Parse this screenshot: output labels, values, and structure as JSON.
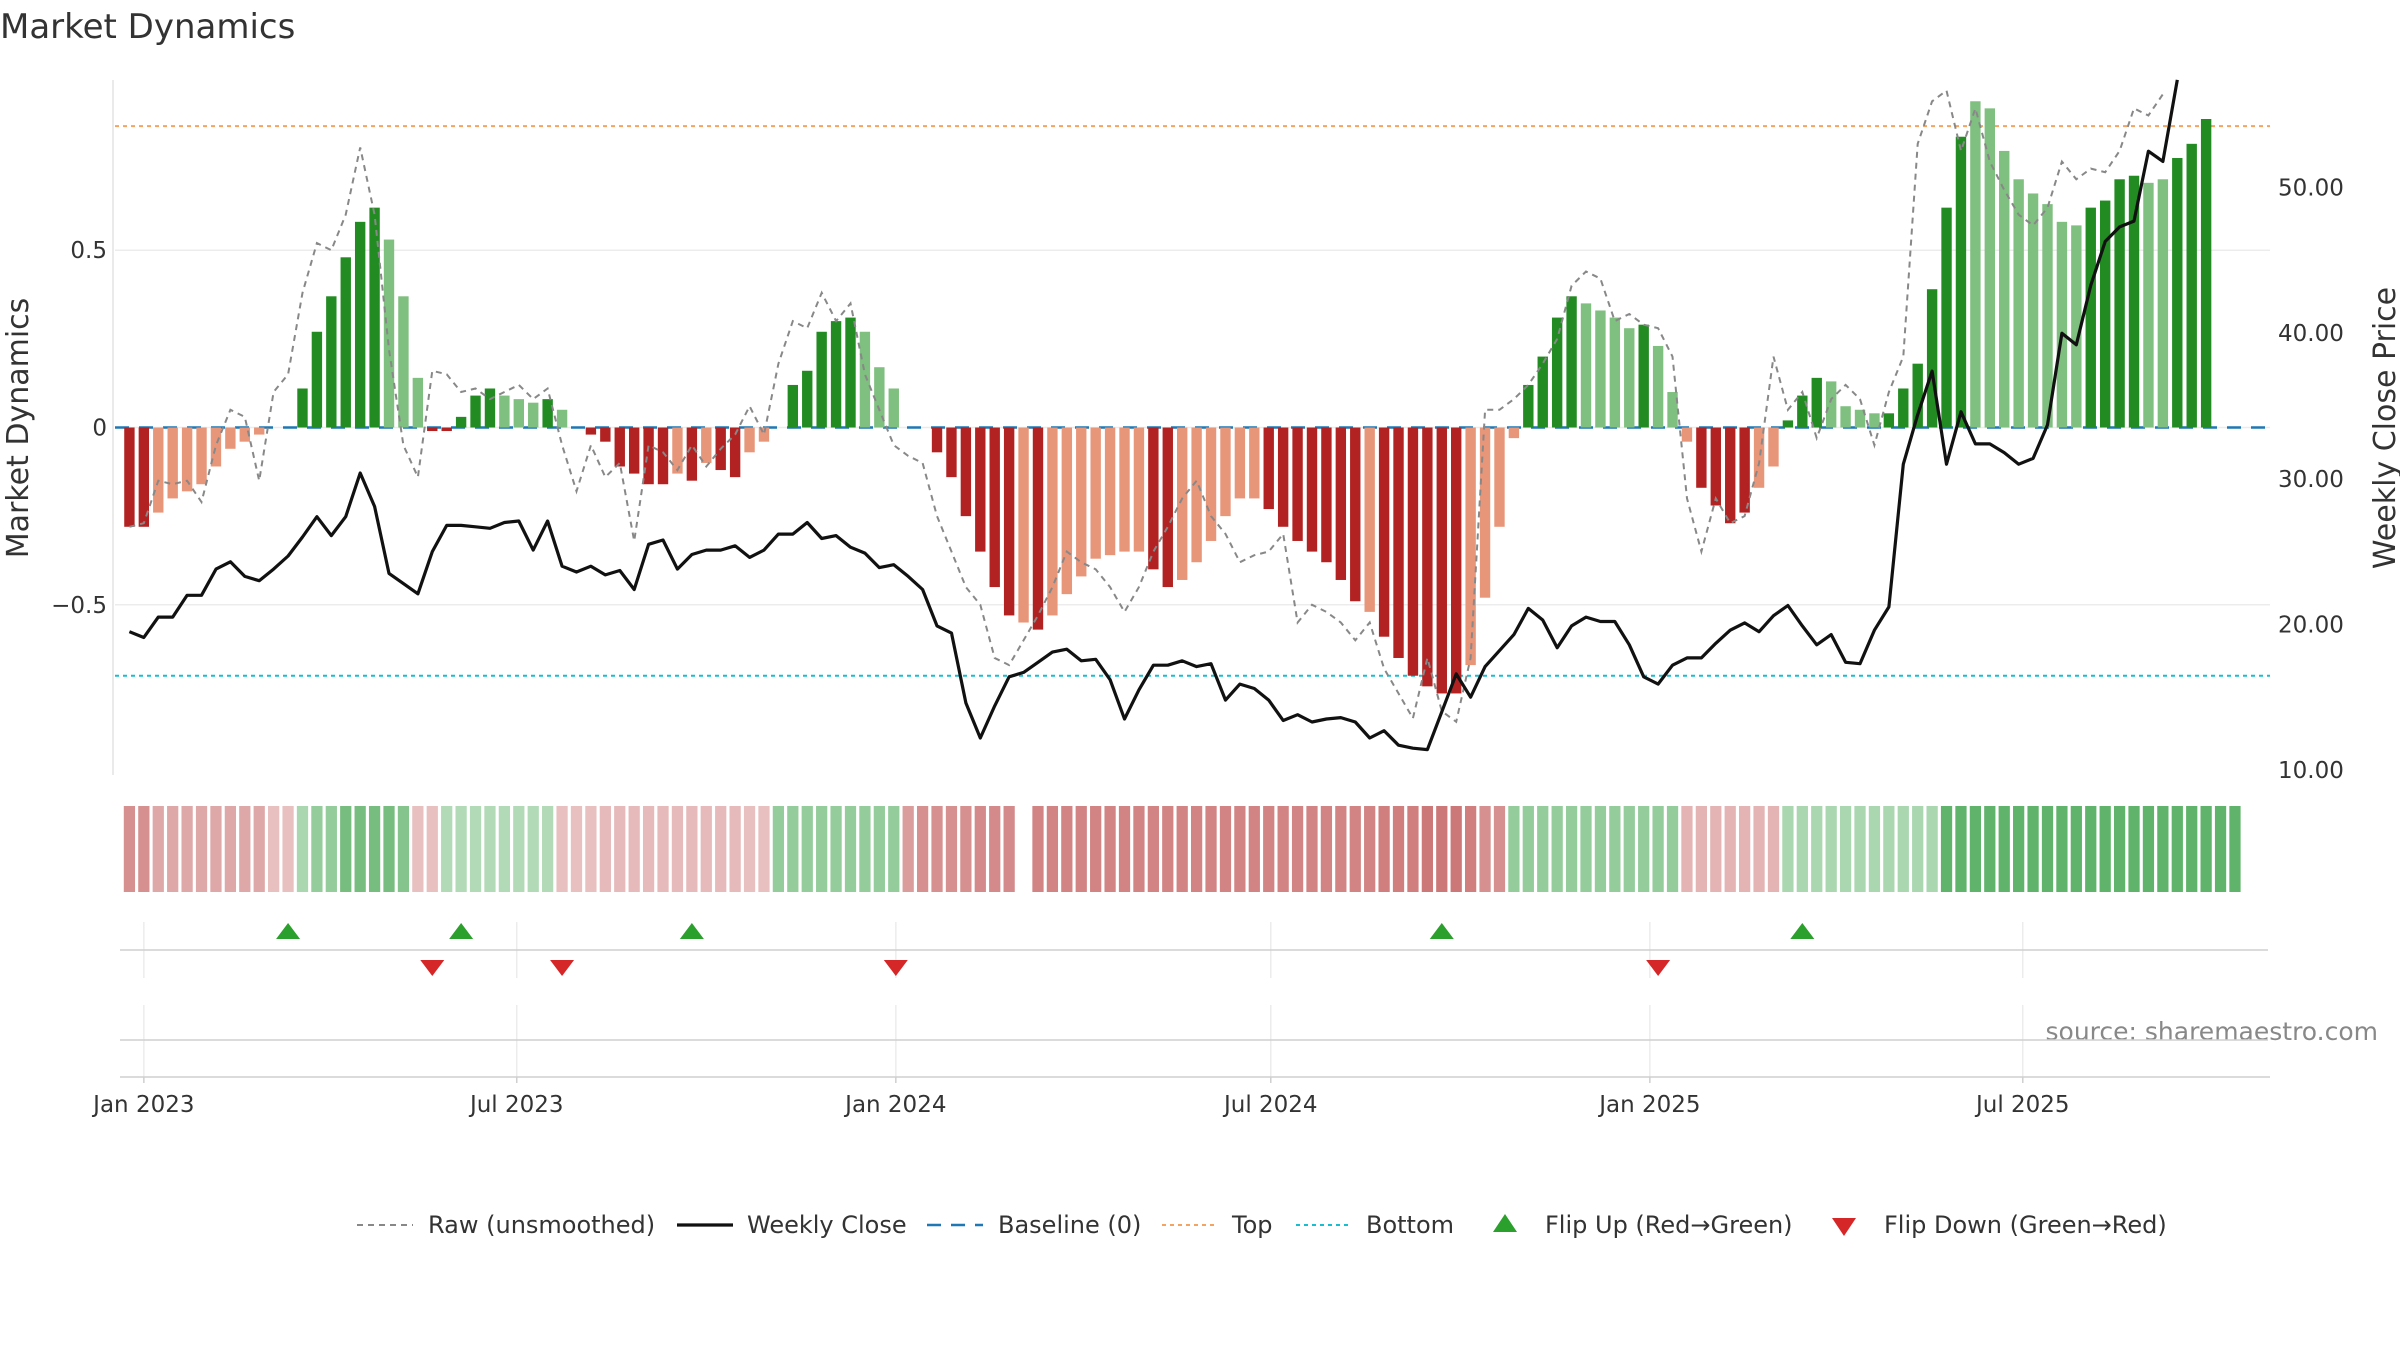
{
  "chart_data": {
    "type": "bar",
    "title": "Market Dynamics",
    "ylabel_left": "Market Dynamics",
    "ylabel_right": "Weekly Close Price",
    "left_ticks": [
      {
        "value": 0.5,
        "label": "0.5"
      },
      {
        "value": 0,
        "label": "0"
      },
      {
        "value": -0.5,
        "label": "−0.5"
      }
    ],
    "right_ticks": [
      {
        "value": 50,
        "label": "50.00"
      },
      {
        "value": 40,
        "label": "40.00"
      },
      {
        "value": 30,
        "label": "30.00"
      },
      {
        "value": 20,
        "label": "20.00"
      },
      {
        "value": 10,
        "label": "10.00"
      }
    ],
    "ylim_left": [
      -0.98,
      0.98
    ],
    "ylim_right": [
      10,
      60
    ],
    "x_ticks": [
      {
        "date": "2023-01-01",
        "label": "Jan 2023"
      },
      {
        "date": "2023-07-01",
        "label": "Jul 2023"
      },
      {
        "date": "2024-01-01",
        "label": "Jan 2024"
      },
      {
        "date": "2024-07-01",
        "label": "Jul 2024"
      },
      {
        "date": "2025-01-01",
        "label": "Jan 2025"
      },
      {
        "date": "2025-07-01",
        "label": "Jul 2025"
      }
    ],
    "xlim": [
      "2022-12-18",
      "2025-10-29"
    ],
    "first_week": "2022-12-25",
    "top_level": 0.85,
    "bottom_level": -0.7,
    "grid": true,
    "legend_position": "bottom-center",
    "colors": {
      "strong_green": "#228b22",
      "weak_green": "#7fbf7f",
      "strong_red": "#b22222",
      "weak_red": "#e8967a",
      "close_line": "#111111",
      "raw_line": "#888888",
      "baseline": "#1f77b4",
      "top": "#f4a460",
      "bottom": "#17becf",
      "flip_up": "#2ca02c",
      "flip_down": "#d62728"
    },
    "series": [
      {
        "name": "Market Dynamics",
        "values": [
          -0.28,
          -0.28,
          -0.24,
          -0.2,
          -0.18,
          -0.16,
          -0.11,
          -0.06,
          -0.04,
          -0.02,
          0.0,
          0.0,
          0.11,
          0.27,
          0.37,
          0.48,
          0.58,
          0.62,
          0.53,
          0.37,
          0.14,
          -0.01,
          -0.01,
          0.03,
          0.09,
          0.11,
          0.09,
          0.08,
          0.07,
          0.08,
          0.05,
          0.0,
          -0.02,
          -0.04,
          -0.11,
          -0.13,
          -0.16,
          -0.16,
          -0.13,
          -0.15,
          -0.1,
          -0.12,
          -0.14,
          -0.07,
          -0.04,
          0.0,
          0.12,
          0.16,
          0.27,
          0.3,
          0.31,
          0.27,
          0.17,
          0.11,
          0.0,
          0.0,
          -0.07,
          -0.14,
          -0.25,
          -0.35,
          -0.45,
          -0.53,
          -0.55,
          -0.57,
          -0.53,
          -0.47,
          -0.42,
          -0.37,
          -0.36,
          -0.35,
          -0.35,
          -0.4,
          -0.45,
          -0.43,
          -0.38,
          -0.32,
          -0.25,
          -0.2,
          -0.2,
          -0.23,
          -0.28,
          -0.32,
          -0.35,
          -0.38,
          -0.43,
          -0.49,
          -0.52,
          -0.59,
          -0.65,
          -0.7,
          -0.73,
          -0.75,
          -0.75,
          -0.67,
          -0.48,
          -0.28,
          -0.03,
          0.12,
          0.2,
          0.31,
          0.37,
          0.35,
          0.33,
          0.31,
          0.28,
          0.29,
          0.23,
          0.1,
          -0.04,
          -0.17,
          -0.22,
          -0.27,
          -0.24,
          -0.17,
          -0.11,
          0.02,
          0.09,
          0.14,
          0.13,
          0.06,
          0.05,
          0.04,
          0.04,
          0.11,
          0.18,
          0.39,
          0.62,
          0.82,
          0.92,
          0.9,
          0.78,
          0.7,
          0.66,
          0.63,
          0.58,
          0.57,
          0.62,
          0.64,
          0.7,
          0.71,
          0.69,
          0.7,
          0.76,
          0.8,
          0.87
        ],
        "strength": [
          "s",
          "s",
          "w",
          "w",
          "w",
          "w",
          "w",
          "w",
          "w",
          "w",
          "s",
          "s",
          "s",
          "s",
          "s",
          "s",
          "s",
          "s",
          "w",
          "w",
          "w",
          "s",
          "s",
          "s",
          "s",
          "s",
          "w",
          "w",
          "w",
          "s",
          "w",
          "s",
          "s",
          "s",
          "s",
          "s",
          "s",
          "s",
          "w",
          "s",
          "w",
          "s",
          "s",
          "w",
          "w",
          "w",
          "s",
          "s",
          "s",
          "s",
          "s",
          "w",
          "w",
          "w",
          "w",
          "s",
          "s",
          "s",
          "s",
          "s",
          "s",
          "s",
          "w",
          "s",
          "w",
          "w",
          "w",
          "w",
          "w",
          "w",
          "w",
          "s",
          "s",
          "w",
          "w",
          "w",
          "w",
          "w",
          "w",
          "s",
          "s",
          "s",
          "s",
          "s",
          "s",
          "s",
          "w",
          "s",
          "s",
          "s",
          "s",
          "s",
          "s",
          "w",
          "w",
          "w",
          "w",
          "s",
          "s",
          "s",
          "s",
          "w",
          "w",
          "w",
          "w",
          "s",
          "w",
          "w",
          "w",
          "s",
          "s",
          "s",
          "s",
          "w",
          "w",
          "s",
          "s",
          "s",
          "w",
          "w",
          "w",
          "w",
          "s",
          "s",
          "s",
          "s",
          "s",
          "s",
          "w",
          "w",
          "w",
          "w",
          "w",
          "w",
          "w",
          "w",
          "s",
          "s",
          "s",
          "s",
          "w",
          "w",
          "s",
          "s",
          "s"
        ]
      },
      {
        "name": "Raw (unsmoothed)",
        "values": [
          -0.28,
          -0.27,
          -0.15,
          -0.16,
          -0.15,
          -0.21,
          -0.05,
          0.05,
          0.03,
          -0.15,
          0.1,
          0.15,
          0.38,
          0.52,
          0.5,
          0.6,
          0.79,
          0.6,
          0.22,
          -0.05,
          -0.14,
          0.16,
          0.15,
          0.1,
          0.11,
          0.08,
          0.1,
          0.12,
          0.08,
          0.11,
          -0.05,
          -0.18,
          -0.05,
          -0.14,
          -0.1,
          -0.32,
          -0.05,
          -0.07,
          -0.12,
          -0.05,
          -0.11,
          -0.06,
          -0.02,
          0.06,
          -0.02,
          0.18,
          0.3,
          0.28,
          0.38,
          0.3,
          0.35,
          0.15,
          0.05,
          -0.05,
          -0.08,
          -0.1,
          -0.25,
          -0.35,
          -0.45,
          -0.5,
          -0.65,
          -0.67,
          -0.6,
          -0.53,
          -0.45,
          -0.35,
          -0.38,
          -0.4,
          -0.45,
          -0.52,
          -0.45,
          -0.35,
          -0.28,
          -0.2,
          -0.15,
          -0.25,
          -0.3,
          -0.38,
          -0.36,
          -0.35,
          -0.3,
          -0.55,
          -0.5,
          -0.52,
          -0.55,
          -0.6,
          -0.55,
          -0.68,
          -0.75,
          -0.82,
          -0.65,
          -0.8,
          -0.83,
          -0.65,
          0.05,
          0.05,
          0.08,
          0.12,
          0.18,
          0.25,
          0.4,
          0.44,
          0.42,
          0.3,
          0.32,
          0.29,
          0.28,
          0.2,
          -0.2,
          -0.35,
          -0.2,
          -0.27,
          -0.25,
          -0.1,
          0.2,
          0.05,
          0.1,
          -0.03,
          0.08,
          0.12,
          0.08,
          -0.05,
          0.1,
          0.2,
          0.8,
          0.92,
          0.95,
          0.78,
          0.9,
          0.75,
          0.67,
          0.6,
          0.57,
          0.62,
          0.75,
          0.7,
          0.73,
          0.72,
          0.78,
          0.9,
          0.88,
          0.94
        ]
      },
      {
        "name": "Weekly Close",
        "values": [
          19.5,
          19.1,
          20.5,
          20.5,
          22.0,
          22.0,
          23.8,
          24.3,
          23.3,
          23.0,
          23.8,
          24.7,
          26.0,
          27.4,
          26.1,
          27.4,
          30.4,
          28.1,
          23.5,
          22.8,
          22.1,
          25.0,
          26.8,
          26.8,
          26.7,
          26.6,
          27.0,
          27.1,
          25.1,
          27.1,
          24.0,
          23.6,
          24.0,
          23.4,
          23.7,
          22.4,
          25.5,
          25.8,
          23.8,
          24.8,
          25.1,
          25.1,
          25.4,
          24.6,
          25.1,
          26.2,
          26.2,
          27.0,
          25.9,
          26.1,
          25.3,
          24.9,
          23.9,
          24.1,
          23.3,
          22.4,
          19.9,
          19.4,
          14.6,
          12.2,
          14.4,
          16.4,
          16.7,
          17.4,
          18.1,
          18.3,
          17.5,
          17.6,
          16.2,
          13.5,
          15.5,
          17.2,
          17.2,
          17.5,
          17.1,
          17.3,
          14.8,
          15.9,
          15.6,
          14.8,
          13.4,
          13.8,
          13.3,
          13.5,
          13.6,
          13.3,
          12.2,
          12.7,
          11.7,
          11.5,
          11.4,
          14.0,
          16.6,
          15.0,
          17.1,
          18.2,
          19.3,
          21.1,
          20.3,
          18.4,
          19.9,
          20.5,
          20.2,
          20.2,
          18.6,
          16.4,
          15.9,
          17.2,
          17.7,
          17.7,
          18.7,
          19.6,
          20.1,
          19.5,
          20.6,
          21.3,
          19.9,
          18.6,
          19.3,
          17.4,
          17.3,
          19.6,
          21.2,
          31.0,
          34.4,
          37.4,
          31.0,
          34.6,
          32.4,
          32.4,
          31.8,
          31.0,
          31.4,
          33.7,
          40.0,
          39.2,
          43.3,
          46.3,
          47.3,
          47.7,
          52.5,
          51.8,
          57.4
        ]
      }
    ],
    "regime_band": {
      "values": [
        -0.7,
        -0.7,
        -0.5,
        -0.5,
        -0.5,
        -0.5,
        -0.5,
        -0.5,
        -0.5,
        -0.5,
        -0.3,
        -0.3,
        0.35,
        0.5,
        0.5,
        0.7,
        0.7,
        0.7,
        0.7,
        0.6,
        -0.3,
        -0.3,
        0.3,
        0.3,
        0.3,
        0.3,
        0.3,
        0.3,
        0.3,
        0.3,
        -0.3,
        -0.3,
        -0.3,
        -0.35,
        -0.35,
        -0.35,
        -0.35,
        -0.35,
        -0.35,
        -0.35,
        -0.35,
        -0.35,
        -0.35,
        -0.3,
        -0.3,
        0.5,
        0.5,
        0.5,
        0.5,
        0.5,
        0.5,
        0.5,
        0.5,
        0.5,
        -0.6,
        -0.7,
        -0.7,
        -0.7,
        -0.7,
        -0.75,
        -0.75,
        -0.75,
        null,
        -0.8,
        -0.8,
        -0.8,
        -0.8,
        -0.8,
        -0.8,
        -0.8,
        -0.8,
        -0.8,
        -0.8,
        -0.8,
        -0.8,
        -0.8,
        -0.8,
        -0.8,
        -0.8,
        -0.8,
        -0.8,
        -0.8,
        -0.8,
        -0.8,
        -0.8,
        -0.8,
        -0.8,
        -0.85,
        -0.85,
        -0.85,
        -0.9,
        -0.9,
        -0.9,
        -0.85,
        -0.7,
        -0.7,
        0.5,
        0.5,
        0.5,
        0.5,
        0.5,
        0.5,
        0.5,
        0.5,
        0.5,
        0.5,
        0.5,
        0.5,
        -0.4,
        -0.4,
        -0.4,
        -0.4,
        -0.4,
        -0.4,
        -0.4,
        0.35,
        0.35,
        0.35,
        0.35,
        0.35,
        0.35,
        0.35,
        0.35,
        0.35,
        0.35,
        0.35,
        0.85,
        0.85,
        0.85,
        0.85,
        0.85,
        0.85,
        0.85,
        0.85,
        0.85,
        0.85,
        0.85,
        0.85,
        0.85,
        0.85,
        0.85,
        0.85,
        0.85,
        0.85,
        0.85,
        0.85,
        0.85
      ]
    },
    "flips": [
      {
        "date": "2023-03-12",
        "direction": "up"
      },
      {
        "date": "2023-05-21",
        "direction": "down"
      },
      {
        "date": "2023-06-04",
        "direction": "up"
      },
      {
        "date": "2023-07-23",
        "direction": "down"
      },
      {
        "date": "2023-09-24",
        "direction": "up"
      },
      {
        "date": "2024-01-01",
        "direction": "down"
      },
      {
        "date": "2024-09-22",
        "direction": "up"
      },
      {
        "date": "2025-01-05",
        "direction": "down"
      },
      {
        "date": "2025-03-16",
        "direction": "up"
      }
    ],
    "legend": [
      {
        "key": "raw",
        "label": "Raw (unsmoothed)",
        "style": "dashed-grey"
      },
      {
        "key": "close",
        "label": "Weekly Close",
        "style": "solid-black"
      },
      {
        "key": "baseline",
        "label": "Baseline (0)",
        "style": "dashed-blue"
      },
      {
        "key": "top",
        "label": "Top",
        "style": "dotted-orange"
      },
      {
        "key": "bottom",
        "label": "Bottom",
        "style": "dotted-cyan"
      },
      {
        "key": "flip_up",
        "label": "Flip Up (Red→Green)",
        "style": "triangle-up"
      },
      {
        "key": "flip_down",
        "label": "Flip Down (Green→Red)",
        "style": "triangle-down"
      }
    ],
    "source": "source: sharemaestro.com"
  }
}
